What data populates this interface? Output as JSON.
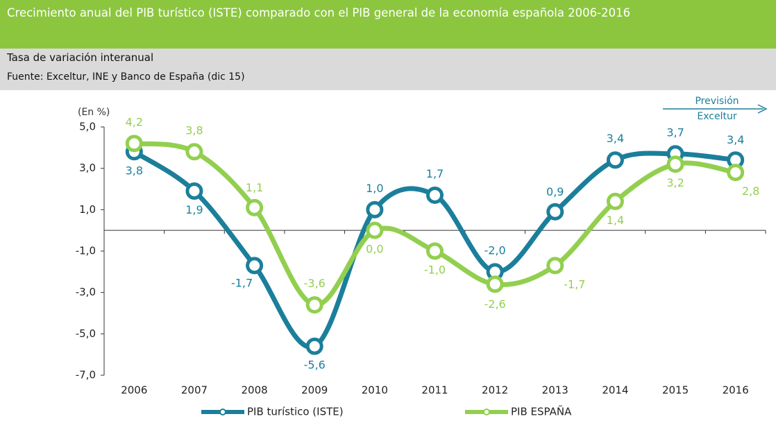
{
  "chart_data": {
    "type": "line",
    "title": "Crecimiento anual del PIB turístico (ISTE) comparado con el PIB general de la economía española 2006-2016",
    "subtitle": "Tasa de variación interanual",
    "source": "Fuente: Exceltur, INE y Banco de España (dic 15)",
    "y_label": "(En %)",
    "annotation": "Previsión Exceltur",
    "categories": [
      "2006",
      "2007",
      "2008",
      "2009",
      "2010",
      "2011",
      "2012",
      "2013",
      "2014",
      "2015",
      "2016"
    ],
    "series": [
      {
        "name": "PIB turístico (ISTE)",
        "color": "#1b7f9b",
        "values": [
          3.8,
          1.9,
          -1.7,
          -5.6,
          1.0,
          1.7,
          -2.0,
          0.9,
          3.4,
          3.7,
          3.4
        ],
        "value_labels": [
          "3,8",
          "1,9",
          "-1,7",
          "-5,6",
          "1,0",
          "1,7",
          "-2,0",
          "0,9",
          "3,4",
          "3,7",
          "3,4"
        ]
      },
      {
        "name": "PIB ESPAÑA",
        "color": "#92cf4f",
        "values": [
          4.2,
          3.8,
          1.1,
          -3.6,
          0.0,
          -1.0,
          -2.6,
          -1.7,
          1.4,
          3.2,
          2.8
        ],
        "value_labels": [
          "4,2",
          "3,8",
          "1,1",
          "-3,6",
          "0,0",
          "-1,0",
          "-2,6",
          "-1,7",
          "1,4",
          "3,2",
          "2,8"
        ]
      }
    ],
    "ylim": [
      -7,
      5
    ],
    "yticks": [
      {
        "value": 5,
        "label": "5,0"
      },
      {
        "value": 3,
        "label": "3,0"
      },
      {
        "value": 1,
        "label": "1,0"
      },
      {
        "value": -1,
        "label": "-1,0"
      },
      {
        "value": -3,
        "label": "-3,0"
      },
      {
        "value": -5,
        "label": "-5,0"
      },
      {
        "value": -7,
        "label": "-7,0"
      }
    ],
    "grid": false
  }
}
